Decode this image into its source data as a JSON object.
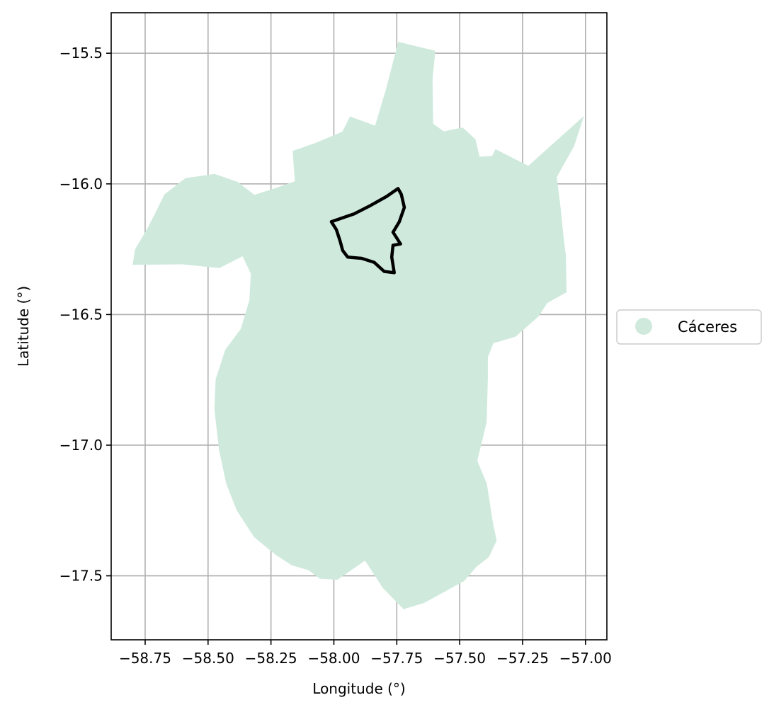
{
  "chart_data": {
    "type": "map",
    "xlabel": "Longitude (°)",
    "ylabel": "Latitude (°)",
    "xlim": [
      -58.885,
      -56.915
    ],
    "ylim": [
      -17.745,
      -15.345
    ],
    "grid": true,
    "x_ticks": [
      -58.75,
      -58.5,
      -58.25,
      -58.0,
      -57.75,
      -57.5,
      -57.25,
      -57.0
    ],
    "x_tick_labels": [
      "−58.75",
      "−58.50",
      "−58.25",
      "−58.00",
      "−57.75",
      "−57.50",
      "−57.25",
      "−57.00"
    ],
    "y_ticks": [
      -15.5,
      -16.0,
      -16.5,
      -17.0,
      -17.5
    ],
    "y_tick_labels": [
      "−15.5",
      "−16.0",
      "−16.5",
      "−17.0",
      "−17.5"
    ],
    "legend": {
      "placement": "right-center",
      "entries": [
        {
          "label": "Cáceres",
          "color": "#cfeadd"
        }
      ]
    },
    "layers": [
      {
        "name": "Cáceres",
        "kind": "polygon",
        "fill": "#cfeadd",
        "coords": [
          [
            -57.744,
            -15.456
          ],
          [
            -57.597,
            -15.491
          ],
          [
            -57.608,
            -15.6
          ],
          [
            -57.605,
            -15.77
          ],
          [
            -57.563,
            -15.799
          ],
          [
            -57.488,
            -15.784
          ],
          [
            -57.437,
            -15.83
          ],
          [
            -57.421,
            -15.896
          ],
          [
            -57.371,
            -15.893
          ],
          [
            -57.358,
            -15.867
          ],
          [
            -57.227,
            -15.931
          ],
          [
            -57.006,
            -15.74
          ],
          [
            -57.045,
            -15.855
          ],
          [
            -57.114,
            -15.974
          ],
          [
            -57.099,
            -16.09
          ],
          [
            -57.087,
            -16.205
          ],
          [
            -57.078,
            -16.275
          ],
          [
            -57.075,
            -16.415
          ],
          [
            -57.152,
            -16.456
          ],
          [
            -57.187,
            -16.508
          ],
          [
            -57.278,
            -16.585
          ],
          [
            -57.366,
            -16.61
          ],
          [
            -57.388,
            -16.664
          ],
          [
            -57.388,
            -16.743
          ],
          [
            -57.393,
            -16.912
          ],
          [
            -57.43,
            -17.06
          ],
          [
            -57.392,
            -17.148
          ],
          [
            -57.367,
            -17.303
          ],
          [
            -57.353,
            -17.365
          ],
          [
            -57.384,
            -17.428
          ],
          [
            -57.434,
            -17.466
          ],
          [
            -57.482,
            -17.52
          ],
          [
            -57.641,
            -17.604
          ],
          [
            -57.723,
            -17.628
          ],
          [
            -57.806,
            -17.546
          ],
          [
            -57.876,
            -17.442
          ],
          [
            -57.986,
            -17.515
          ],
          [
            -58.056,
            -17.511
          ],
          [
            -58.1,
            -17.479
          ],
          [
            -58.167,
            -17.46
          ],
          [
            -58.232,
            -17.419
          ],
          [
            -58.317,
            -17.352
          ],
          [
            -58.386,
            -17.25
          ],
          [
            -58.428,
            -17.147
          ],
          [
            -58.456,
            -17.02
          ],
          [
            -58.475,
            -16.862
          ],
          [
            -58.47,
            -16.748
          ],
          [
            -58.432,
            -16.635
          ],
          [
            -58.37,
            -16.555
          ],
          [
            -58.336,
            -16.446
          ],
          [
            -58.33,
            -16.344
          ],
          [
            -58.363,
            -16.277
          ],
          [
            -58.455,
            -16.322
          ],
          [
            -58.602,
            -16.308
          ],
          [
            -58.8,
            -16.31
          ],
          [
            -58.79,
            -16.25
          ],
          [
            -58.741,
            -16.17
          ],
          [
            -58.709,
            -16.11
          ],
          [
            -58.673,
            -16.04
          ],
          [
            -58.59,
            -15.978
          ],
          [
            -58.474,
            -15.962
          ],
          [
            -58.383,
            -15.992
          ],
          [
            -58.316,
            -16.042
          ],
          [
            -58.238,
            -16.018
          ],
          [
            -58.155,
            -15.99
          ],
          [
            -58.164,
            -15.874
          ],
          [
            -58.075,
            -15.844
          ],
          [
            -57.966,
            -15.8
          ],
          [
            -57.936,
            -15.742
          ],
          [
            -57.836,
            -15.777
          ],
          [
            -57.793,
            -15.638
          ],
          [
            -57.744,
            -15.456
          ]
        ]
      },
      {
        "name": "boundary",
        "kind": "line",
        "stroke": "#000000",
        "coords": [
          [
            -57.745,
            -16.018
          ],
          [
            -57.79,
            -16.048
          ],
          [
            -57.853,
            -16.082
          ],
          [
            -57.92,
            -16.115
          ],
          [
            -58.01,
            -16.145
          ],
          [
            -57.99,
            -16.175
          ],
          [
            -57.975,
            -16.22
          ],
          [
            -57.965,
            -16.255
          ],
          [
            -57.945,
            -16.28
          ],
          [
            -57.89,
            -16.285
          ],
          [
            -57.84,
            -16.3
          ],
          [
            -57.8,
            -16.335
          ],
          [
            -57.76,
            -16.34
          ],
          [
            -57.77,
            -16.28
          ],
          [
            -57.765,
            -16.235
          ],
          [
            -57.735,
            -16.23
          ],
          [
            -57.765,
            -16.185
          ],
          [
            -57.74,
            -16.145
          ],
          [
            -57.72,
            -16.09
          ],
          [
            -57.732,
            -16.04
          ],
          [
            -57.745,
            -16.018
          ]
        ]
      }
    ]
  }
}
